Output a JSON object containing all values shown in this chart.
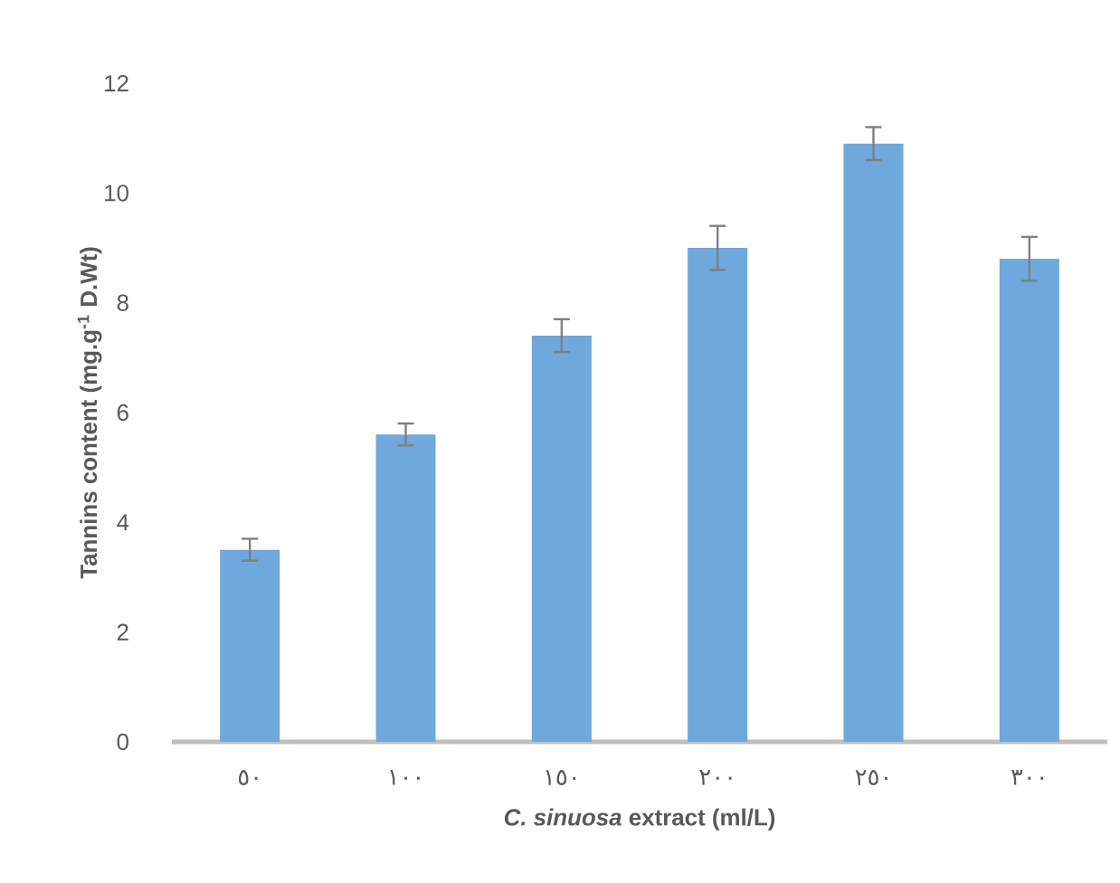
{
  "chart_data": {
    "type": "bar",
    "xlabel": "*C. sinuosa* extract (ml/L)",
    "ylabel": "Tannins content (mg.g$^{-1}$ D.Wt)",
    "categories": [
      "٥٠",
      "١٠٠",
      "١٥٠",
      "٢٠٠",
      "٢٥٠",
      "٣٠٠"
    ],
    "values": [
      3.5,
      5.6,
      7.4,
      9.0,
      10.9,
      8.8
    ],
    "errors": [
      0.2,
      0.2,
      0.3,
      0.4,
      0.3,
      0.4
    ],
    "color": "#6fa8dc",
    "ylim": [
      0,
      12
    ],
    "yticks": [
      0,
      2,
      4,
      6,
      8,
      10,
      12
    ]
  }
}
